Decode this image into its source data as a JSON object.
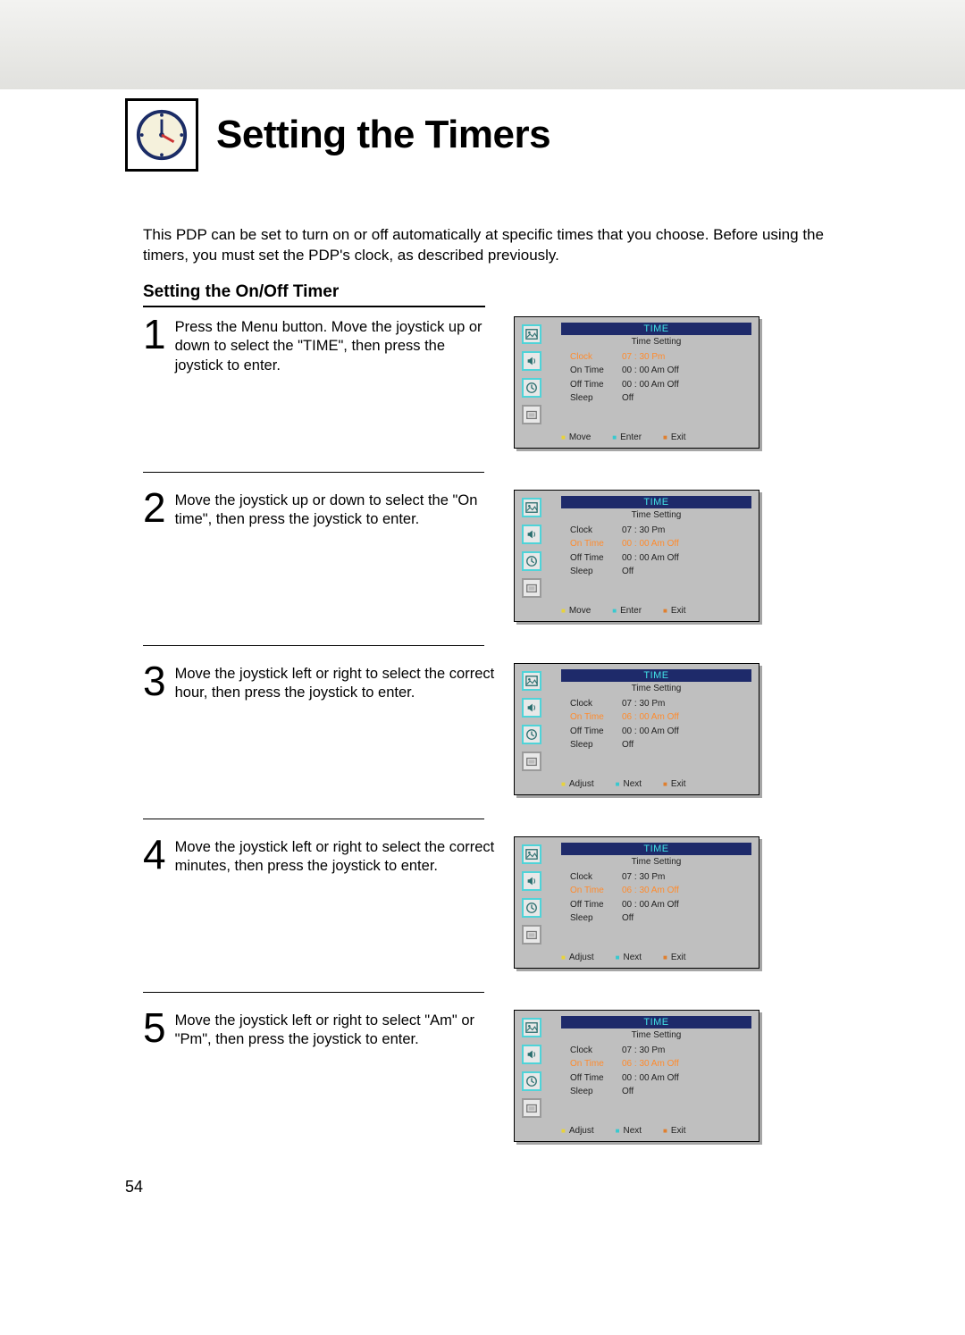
{
  "title": "Setting the Timers",
  "intro": "This PDP can be set to turn on or off automatically at specific times that you choose. Before using the timers, you must set the PDP's clock, as described previously.",
  "subheading": "Setting the On/Off Timer",
  "page_number": "54",
  "osd_common": {
    "title": "TIME",
    "subtitle": "Time Setting",
    "title_bg": "#1e2a6a",
    "title_color": "#42e1e6",
    "panel_bg": "#bfbfbf",
    "highlight_color": "#ff8b2d",
    "icon_border": "#4fd3d8"
  },
  "footer_sets": {
    "move": [
      "Move",
      "Enter",
      "Exit"
    ],
    "adjust": [
      "Adjust",
      "Next",
      "Exit"
    ]
  },
  "sidebar_icons": [
    "picture-icon",
    "sound-icon",
    "clock-icon",
    "misc-icon"
  ],
  "steps": [
    {
      "num": "1",
      "text": "Press the Menu button. Move the joystick up or down to select the \"TIME\", then press the joystick to enter.",
      "highlight_row": 0,
      "footer": "move",
      "lines": [
        {
          "lab": "Clock",
          "val": "07 : 30  Pm"
        },
        {
          "lab": "On Time",
          "val": "00 : 00  Am  Off"
        },
        {
          "lab": "Off Time",
          "val": "00 : 00  Am  Off"
        },
        {
          "lab": "Sleep",
          "val": "Off"
        }
      ]
    },
    {
      "num": "2",
      "text": "Move the joystick up or down to select the \"On time\", then press the joystick to enter.",
      "highlight_row": 1,
      "footer": "move",
      "lines": [
        {
          "lab": "Clock",
          "val": "07 : 30  Pm"
        },
        {
          "lab": "On Time",
          "val": "00 : 00  Am  Off"
        },
        {
          "lab": "Off Time",
          "val": "00 : 00  Am  Off"
        },
        {
          "lab": "Sleep",
          "val": "Off"
        }
      ]
    },
    {
      "num": "3",
      "text": "Move the joystick left or right to select the correct hour, then press the joystick to enter.",
      "highlight_row": 1,
      "footer": "adjust",
      "lines": [
        {
          "lab": "Clock",
          "val": "07 : 30  Pm"
        },
        {
          "lab": "On Time",
          "val": "06 : 00  Am  Off"
        },
        {
          "lab": "Off Time",
          "val": "00 : 00  Am  Off"
        },
        {
          "lab": "Sleep",
          "val": "Off"
        }
      ]
    },
    {
      "num": "4",
      "text": "Move the joystick left or right to select the correct minutes, then press the joystick to enter.",
      "highlight_row": 1,
      "footer": "adjust",
      "lines": [
        {
          "lab": "Clock",
          "val": "07 : 30  Pm"
        },
        {
          "lab": "On Time",
          "val": "06 : 30  Am  Off"
        },
        {
          "lab": "Off Time",
          "val": "00 : 00  Am  Off"
        },
        {
          "lab": "Sleep",
          "val": "Off"
        }
      ]
    },
    {
      "num": "5",
      "text": "Move the joystick left or right to select \"Am\" or \"Pm\", then press the joystick to enter.",
      "highlight_row": 1,
      "footer": "adjust",
      "lines": [
        {
          "lab": "Clock",
          "val": "07 : 30  Pm"
        },
        {
          "lab": "On Time",
          "val": "06 : 30  Am  Off"
        },
        {
          "lab": "Off Time",
          "val": "00 : 00  Am  Off"
        },
        {
          "lab": "Sleep",
          "val": "Off"
        }
      ]
    }
  ]
}
